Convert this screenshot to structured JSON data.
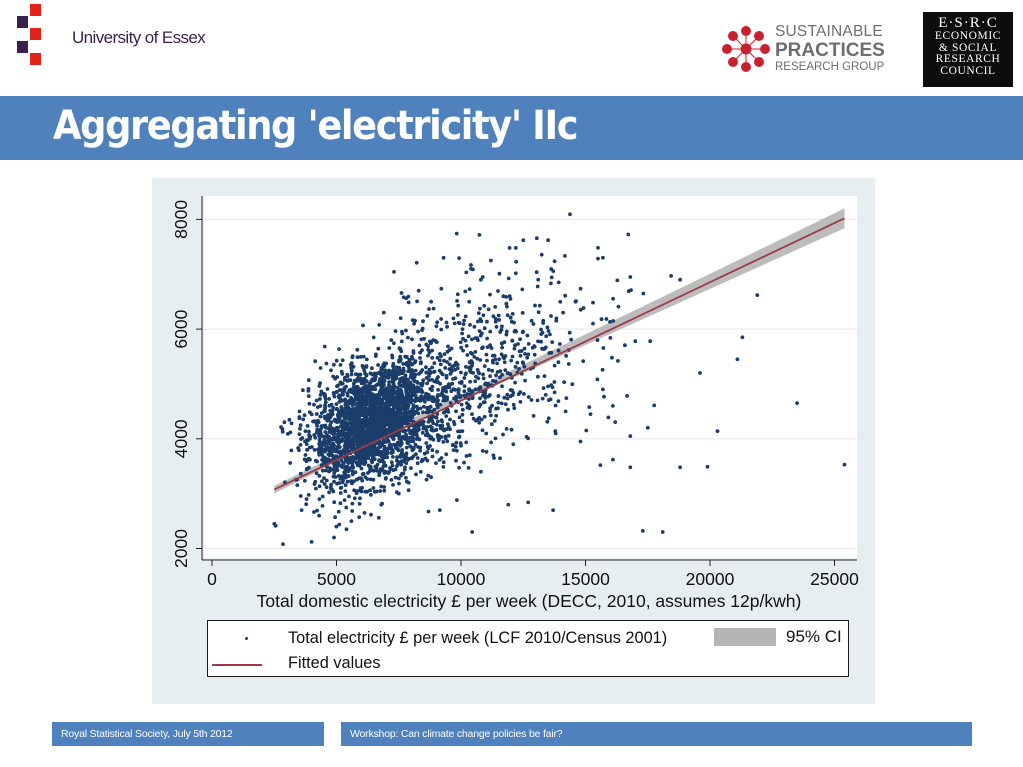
{
  "header": {
    "essex_logo_text": "University of Essex",
    "sprg_logo": {
      "line1": "SUSTAINABLE",
      "line2": "PRACTICES",
      "line3": "RESEARCH GROUP"
    },
    "esrc_logo": {
      "line1": "E·S·R·C",
      "line2": "ECONOMIC",
      "line3": "& SOCIAL",
      "line4": "RESEARCH",
      "line5": "COUNCIL"
    }
  },
  "colors": {
    "title_bar": "#4f81bd",
    "essex_red": "#e2231a",
    "essex_purple": "#3b1f4f",
    "sprg_red": "#c8202f",
    "point": "#1a3d6a",
    "fit_line": "#9c3b45",
    "ci_band": "#b5b5b5",
    "panel_bg": "#e6eef1"
  },
  "slide": {
    "title": "Aggregating 'electricity' IIc"
  },
  "footer": {
    "left": "Royal Statistical Society, July 5th 2012",
    "right": "Workshop: Can climate change policies be fair?"
  },
  "chart_data": {
    "type": "scatter",
    "title": "",
    "xlabel": "Total domestic electricity £ per week (DECC, 2010, assumes 12p/kwh)",
    "ylabel": "",
    "xlim": [
      0,
      25800
    ],
    "ylim": [
      1950,
      8400
    ],
    "xticks": [
      0,
      5000,
      10000,
      15000,
      20000,
      25000
    ],
    "xtick_labels": [
      "0",
      "5000",
      "10000",
      "15000",
      "20000",
      "25000"
    ],
    "yticks": [
      2000,
      4000,
      6000,
      8000
    ],
    "ytick_labels": [
      "2000",
      "4000",
      "6000",
      "8000"
    ],
    "grid": "horizontal",
    "legend": {
      "placement": "bottom",
      "entries": [
        {
          "label": "Total electricity £ per week (LCF 2010/Census 2001)",
          "kind": "point"
        },
        {
          "label": "95% CI",
          "kind": "band"
        },
        {
          "label": "Fitted values",
          "kind": "line"
        }
      ]
    },
    "series": [
      {
        "name": "Total electricity £ per week (LCF 2010/Census 2001)",
        "kind": "scatter",
        "dense_clusters": [
          {
            "cx": 6300,
            "cy": 4250,
            "sx": 1150,
            "sy": 520,
            "rho": 0.35,
            "n": 2100
          },
          {
            "cx": 8500,
            "cy": 4700,
            "sx": 2100,
            "sy": 750,
            "rho": 0.45,
            "n": 650
          },
          {
            "cx": 11500,
            "cy": 5600,
            "sx": 2300,
            "sy": 850,
            "rho": 0.3,
            "n": 330
          }
        ],
        "points": [
          [
            2500,
            2450
          ],
          [
            2850,
            2080
          ],
          [
            4000,
            2120
          ],
          [
            4900,
            2200
          ],
          [
            5400,
            2350
          ],
          [
            6700,
            2560
          ],
          [
            9150,
            2700
          ],
          [
            10450,
            2300
          ],
          [
            11900,
            2800
          ],
          [
            12700,
            2840
          ],
          [
            13700,
            2700
          ],
          [
            15600,
            3520
          ],
          [
            16100,
            3620
          ],
          [
            16800,
            3480
          ],
          [
            17300,
            2320
          ],
          [
            18100,
            2300
          ],
          [
            18800,
            3480
          ],
          [
            19900,
            3490
          ],
          [
            20300,
            4140
          ],
          [
            23500,
            4650
          ],
          [
            25400,
            3530
          ],
          [
            19600,
            5200
          ],
          [
            21100,
            5450
          ],
          [
            21300,
            5850
          ],
          [
            21900,
            6620
          ],
          [
            18800,
            6900
          ],
          [
            17600,
            5780
          ],
          [
            17000,
            5780
          ],
          [
            16000,
            5840
          ],
          [
            16300,
            5420
          ],
          [
            15200,
            4450
          ],
          [
            14800,
            3950
          ],
          [
            16800,
            4050
          ],
          [
            16100,
            4600
          ],
          [
            17500,
            4200
          ],
          [
            15700,
            4900
          ],
          [
            9300,
            7300
          ],
          [
            10400,
            7100
          ],
          [
            11200,
            7250
          ],
          [
            12200,
            7480
          ],
          [
            12500,
            7620
          ],
          [
            13500,
            7620
          ],
          [
            15500,
            7480
          ],
          [
            15700,
            7300
          ],
          [
            16800,
            6950
          ],
          [
            14600,
            6500
          ],
          [
            8300,
            6700
          ],
          [
            7700,
            6580
          ],
          [
            8800,
            6500
          ],
          [
            6900,
            6300
          ],
          [
            7200,
            5800
          ],
          [
            10800,
            6900
          ],
          [
            11700,
            6600
          ],
          [
            13100,
            6900
          ],
          [
            14100,
            6300
          ],
          [
            15300,
            6100
          ],
          [
            12900,
            5300
          ],
          [
            13400,
            4800
          ],
          [
            14200,
            4500
          ],
          [
            11300,
            3700
          ],
          [
            10800,
            3400
          ],
          [
            12100,
            3900
          ],
          [
            9800,
            3600
          ],
          [
            8800,
            3300
          ],
          [
            7500,
            3000
          ],
          [
            6800,
            2800
          ],
          [
            4300,
            2600
          ],
          [
            3800,
            2900
          ],
          [
            3600,
            2700
          ],
          [
            5600,
            2500
          ],
          [
            7900,
            3200
          ]
        ]
      },
      {
        "name": "Fitted values",
        "kind": "line",
        "x": [
          2500,
          25400
        ],
        "y": [
          3075,
          8020
        ]
      },
      {
        "name": "95% CI",
        "kind": "band",
        "x": [
          2500,
          9000,
          25400
        ],
        "lower": [
          3005,
          4480,
          7840
        ],
        "upper": [
          3145,
          4580,
          8200
        ]
      }
    ]
  }
}
